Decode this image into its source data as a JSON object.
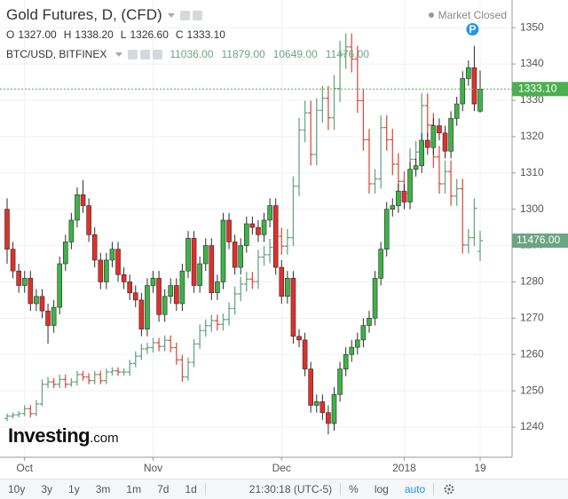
{
  "chart_data": {
    "type": "candlestick",
    "categories": [
      null,
      null,
      null,
      "Oct",
      null,
      null,
      null,
      null,
      null,
      null,
      null,
      null,
      null,
      null,
      null,
      null,
      null,
      null,
      null,
      null,
      null,
      null,
      null,
      null,
      null,
      "Nov",
      null,
      null,
      null,
      null,
      null,
      null,
      null,
      null,
      null,
      null,
      null,
      null,
      null,
      null,
      null,
      null,
      null,
      null,
      null,
      null,
      null,
      "Dec",
      null,
      null,
      null,
      null,
      null,
      null,
      null,
      null,
      null,
      null,
      null,
      null,
      null,
      null,
      null,
      null,
      null,
      null,
      null,
      null,
      "2018",
      null,
      null,
      null,
      null,
      null,
      null,
      null,
      null,
      null,
      null,
      null,
      null,
      "19"
    ],
    "ylim": [
      1231.7,
      1356.4
    ],
    "yticks": [
      1240,
      1250,
      1260,
      1270,
      1280,
      1290,
      1300,
      1310,
      1320,
      1330,
      1340,
      1350
    ],
    "y2lim": [
      2616,
      21135
    ],
    "grid": true,
    "status": "Market Closed",
    "marker_label": "P",
    "series": [
      {
        "name": "Gold Futures, D, (CFD)",
        "up_color": "#3db346",
        "down_color": "#e0302a",
        "border_color": "#2b2b2b",
        "line_color": "#4caf50",
        "ohlc_keys": [
          "O",
          "H",
          "L",
          "C"
        ],
        "ohlc_labels": [
          "1327.00",
          "1338.20",
          "1326.60",
          "1333.10"
        ],
        "open": [
          1300,
          1289,
          1283,
          1279,
          1281,
          1274,
          1276,
          1272,
          1268,
          1273,
          1285,
          1291,
          1297,
          1304,
          1301,
          1293,
          1286,
          1280,
          1286,
          1289,
          1282,
          1280,
          1277,
          1275,
          1267,
          1279,
          1281,
          1271,
          1276,
          1279,
          1274,
          1283,
          1292,
          1279,
          1285,
          1290,
          1277,
          1280,
          1297,
          1291,
          1284,
          1290,
          1296,
          1295,
          1293,
          1297,
          1301,
          1284,
          1276,
          1281,
          1265,
          1264,
          1256,
          1246,
          1247,
          1244,
          1241,
          1249,
          1256,
          1260,
          1262,
          1264,
          1268,
          1270,
          1281,
          1289,
          1300,
          1301,
          1305,
          1302,
          1311,
          1312,
          1319,
          1317,
          1323,
          1321,
          1316,
          1325,
          1329,
          1336,
          1339,
          1327
        ],
        "high": [
          1303,
          1291,
          1285,
          1283,
          1283,
          1278,
          1278,
          1274,
          1275,
          1287,
          1293,
          1299,
          1306,
          1308,
          1303,
          1295,
          1288,
          1288,
          1291,
          1291,
          1284,
          1282,
          1279,
          1277,
          1281,
          1283,
          1283,
          1278,
          1281,
          1281,
          1285,
          1294,
          1294,
          1287,
          1292,
          1292,
          1282,
          1299,
          1299,
          1293,
          1292,
          1298,
          1298,
          1297,
          1299,
          1303,
          1303,
          1286,
          1283,
          1283,
          1267,
          1266,
          1258,
          1249,
          1249,
          1246,
          1251,
          1258,
          1262,
          1264,
          1266,
          1270,
          1272,
          1283,
          1291,
          1302,
          1303,
          1307,
          1307,
          1313,
          1314,
          1321,
          1321,
          1325,
          1325,
          1323,
          1327,
          1331,
          1338,
          1341,
          1345,
          1338.2
        ],
        "low": [
          1285,
          1281,
          1277,
          1277,
          1272,
          1272,
          1270,
          1263,
          1266,
          1271,
          1283,
          1289,
          1295,
          1299,
          1291,
          1284,
          1278,
          1278,
          1284,
          1280,
          1278,
          1275,
          1273,
          1265,
          1265,
          1277,
          1269,
          1269,
          1274,
          1272,
          1272,
          1281,
          1277,
          1277,
          1283,
          1275,
          1275,
          1278,
          1289,
          1282,
          1282,
          1288,
          1293,
          1291,
          1291,
          1295,
          1282,
          1274,
          1274,
          1263,
          1262,
          1254,
          1244,
          1244,
          1242,
          1238,
          1239,
          1247,
          1254,
          1258,
          1260,
          1262,
          1266,
          1268,
          1279,
          1287,
          1298,
          1299,
          1300,
          1300,
          1309,
          1310,
          1315,
          1315,
          1319,
          1314,
          1314,
          1323,
          1327,
          1334,
          1327,
          1326.6
        ],
        "close": [
          1289,
          1283,
          1279,
          1281,
          1274,
          1276,
          1272,
          1268,
          1273,
          1285,
          1291,
          1297,
          1304,
          1301,
          1293,
          1286,
          1280,
          1286,
          1289,
          1282,
          1280,
          1277,
          1275,
          1267,
          1279,
          1281,
          1271,
          1276,
          1279,
          1274,
          1283,
          1292,
          1279,
          1285,
          1290,
          1277,
          1280,
          1297,
          1291,
          1284,
          1290,
          1296,
          1295,
          1293,
          1297,
          1301,
          1284,
          1276,
          1281,
          1265,
          1264,
          1256,
          1246,
          1247,
          1244,
          1241,
          1249,
          1256,
          1260,
          1262,
          1264,
          1268,
          1270,
          1281,
          1289,
          1300,
          1301,
          1305,
          1302,
          1311,
          1312,
          1319,
          1317,
          1323,
          1321,
          1316,
          1325,
          1329,
          1336,
          1339,
          1329,
          1333.1
        ]
      },
      {
        "name": "BTC/USD, BITFINEX",
        "type": "ohlc",
        "axis": "y2",
        "up_color": "#6ba583",
        "down_color": "#d75442",
        "label_color": "#6ba583",
        "ohlc_labels": [
          "11036.00",
          "11879.00",
          "10649.00",
          "11476.00"
        ],
        "open": [
          4200,
          4300,
          4350,
          4400,
          4600,
          4400,
          4800,
          5600,
          5700,
          5600,
          5800,
          5600,
          5700,
          6000,
          5900,
          5750,
          6000,
          5750,
          6100,
          6150,
          6100,
          6100,
          6450,
          6750,
          7050,
          7100,
          7300,
          7150,
          7400,
          7100,
          6600,
          5900,
          6500,
          7250,
          7800,
          8000,
          8200,
          8050,
          8250,
          8700,
          9300,
          9700,
          9900,
          9800,
          10800,
          10900,
          11200,
          11650,
          11250,
          11600,
          13700,
          16000,
          16700,
          15000,
          16800,
          17300,
          16500,
          17700,
          19100,
          19400,
          18900,
          17200,
          15600,
          13800,
          14000,
          16100,
          15600,
          14600,
          13900,
          13400,
          14800,
          15100,
          17000,
          16200,
          14900,
          13800,
          14300,
          13300,
          13600,
          11300,
          11600,
          11036
        ],
        "high": [
          4400,
          4450,
          4500,
          4750,
          4750,
          4950,
          5800,
          5900,
          5850,
          6000,
          6000,
          5850,
          6150,
          6150,
          6050,
          6150,
          6150,
          6250,
          6300,
          6300,
          6250,
          6600,
          6950,
          7250,
          7300,
          7500,
          7500,
          7600,
          7600,
          7300,
          6800,
          6700,
          7450,
          8050,
          8250,
          8450,
          8450,
          8500,
          8950,
          9600,
          10000,
          10200,
          10200,
          11100,
          11250,
          11550,
          12000,
          12000,
          11950,
          14100,
          16500,
          17200,
          17200,
          17300,
          17800,
          17800,
          18250,
          19650,
          19950,
          19950,
          19450,
          17700,
          16050,
          14400,
          16600,
          16600,
          16050,
          15050,
          14300,
          15250,
          15550,
          17500,
          17500,
          16700,
          15350,
          14750,
          14750,
          14000,
          14000,
          11950,
          13200,
          11879
        ],
        "low": [
          4100,
          4200,
          4250,
          4300,
          4250,
          4300,
          4700,
          5450,
          5450,
          5450,
          5450,
          5500,
          5550,
          5750,
          5600,
          5600,
          5600,
          5600,
          5950,
          5950,
          5950,
          5950,
          6300,
          6600,
          6850,
          6900,
          6950,
          6950,
          6900,
          6400,
          5700,
          5750,
          6300,
          7050,
          7550,
          7750,
          7800,
          7800,
          8000,
          8450,
          9000,
          9400,
          9500,
          9500,
          10450,
          10550,
          10850,
          10900,
          10900,
          11250,
          13300,
          15500,
          14550,
          14550,
          16300,
          16000,
          16000,
          17150,
          18500,
          18350,
          16700,
          15150,
          13400,
          13400,
          13600,
          15150,
          14150,
          13500,
          13000,
          13000,
          14350,
          14650,
          15700,
          14450,
          13400,
          13400,
          12900,
          12900,
          10950,
          10950,
          11250,
          10649
        ],
        "close": [
          4300,
          4350,
          4400,
          4600,
          4400,
          4800,
          5600,
          5700,
          5600,
          5800,
          5600,
          5700,
          6000,
          5900,
          5750,
          6000,
          5750,
          6100,
          6150,
          6100,
          6100,
          6450,
          6750,
          7050,
          7100,
          7300,
          7150,
          7400,
          7100,
          6600,
          5900,
          6500,
          7250,
          7800,
          8000,
          8200,
          8050,
          8250,
          8700,
          9300,
          9700,
          9900,
          9800,
          10800,
          10900,
          11200,
          11650,
          11250,
          11600,
          13700,
          16000,
          16700,
          15000,
          16800,
          17300,
          16500,
          17700,
          19100,
          19400,
          18900,
          17200,
          15600,
          13800,
          14000,
          16100,
          15600,
          14600,
          13900,
          13400,
          14800,
          15100,
          17000,
          16200,
          14900,
          13800,
          14300,
          13300,
          13600,
          11300,
          11600,
          12800,
          11476
        ]
      }
    ]
  },
  "watermark": {
    "brand": "Investing",
    "suffix": ".com"
  },
  "toolbar": {
    "ranges": [
      "10y",
      "3y",
      "1y",
      "3m",
      "1m",
      "7d",
      "1d"
    ],
    "time": "21:30:18 (UTC-5)",
    "options": [
      "%",
      "log",
      "auto"
    ]
  }
}
